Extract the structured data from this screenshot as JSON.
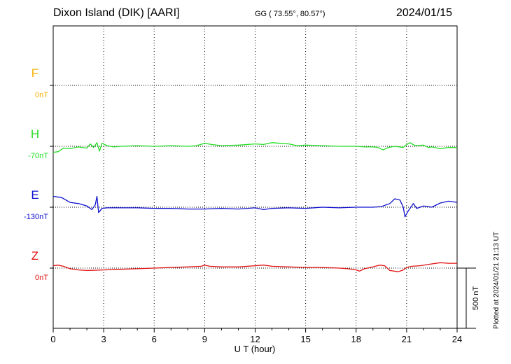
{
  "header": {
    "title": "Dixon Island (DIK)  [AARI]",
    "coords": "GG ( 73.55°,  80.57°)",
    "date": "2024/01/15",
    "plotted": "Plotted at 2024/01/21 21:13 UT"
  },
  "chart_data": {
    "type": "line",
    "title": "Dixon Island (DIK)  [AARI]",
    "xlabel": "U T (hour)",
    "ylabel": "",
    "xlim": [
      0,
      24
    ],
    "x_ticks": [
      "0",
      "3",
      "6",
      "9",
      "12",
      "15",
      "18",
      "21",
      "24"
    ],
    "grid": true,
    "scale_bar_label": "500 nT",
    "scale_bar_nT": 500,
    "series": [
      {
        "name": "F",
        "baseline_label": "0nT",
        "color": "#f5b000",
        "points": []
      },
      {
        "name": "H",
        "baseline_label": "-70nT",
        "color": "#22dd22",
        "points": [
          [
            0,
            -50
          ],
          [
            0.3,
            -45
          ],
          [
            0.6,
            -15
          ],
          [
            1.0,
            -20
          ],
          [
            1.5,
            -5
          ],
          [
            2.0,
            -15
          ],
          [
            2.2,
            20
          ],
          [
            2.4,
            -10
          ],
          [
            2.6,
            30
          ],
          [
            2.75,
            -40
          ],
          [
            2.9,
            25
          ],
          [
            3.2,
            5
          ],
          [
            3.6,
            -5
          ],
          [
            4.0,
            0
          ],
          [
            5.0,
            5
          ],
          [
            6.0,
            0
          ],
          [
            7.0,
            5
          ],
          [
            8.0,
            0
          ],
          [
            8.5,
            5
          ],
          [
            9.0,
            25
          ],
          [
            9.4,
            15
          ],
          [
            10,
            5
          ],
          [
            11,
            10
          ],
          [
            12,
            20
          ],
          [
            12.5,
            15
          ],
          [
            13,
            30
          ],
          [
            13.5,
            25
          ],
          [
            14,
            20
          ],
          [
            14.5,
            5
          ],
          [
            15,
            10
          ],
          [
            16,
            5
          ],
          [
            17,
            0
          ],
          [
            18,
            0
          ],
          [
            18.5,
            -5
          ],
          [
            19,
            -5
          ],
          [
            19.3,
            -10
          ],
          [
            19.6,
            -30
          ],
          [
            19.9,
            -10
          ],
          [
            20.3,
            0
          ],
          [
            20.8,
            -10
          ],
          [
            21,
            15
          ],
          [
            21.2,
            30
          ],
          [
            21.5,
            5
          ],
          [
            22,
            10
          ],
          [
            22.3,
            -10
          ],
          [
            22.5,
            -5
          ],
          [
            23,
            -20
          ],
          [
            23.5,
            -10
          ],
          [
            24,
            -10
          ]
        ]
      },
      {
        "name": "E",
        "baseline_label": "-130nT",
        "color": "#1010d0",
        "points": [
          [
            0,
            90
          ],
          [
            0.5,
            80
          ],
          [
            1.0,
            40
          ],
          [
            1.5,
            30
          ],
          [
            2.0,
            10
          ],
          [
            2.3,
            -20
          ],
          [
            2.5,
            20
          ],
          [
            2.6,
            90
          ],
          [
            2.7,
            -45
          ],
          [
            2.9,
            -10
          ],
          [
            3.2,
            -5
          ],
          [
            4,
            -5
          ],
          [
            5,
            -5
          ],
          [
            6,
            -10
          ],
          [
            7,
            -10
          ],
          [
            8,
            -15
          ],
          [
            9,
            -15
          ],
          [
            10,
            -10
          ],
          [
            11,
            -15
          ],
          [
            12,
            -5
          ],
          [
            12.5,
            -20
          ],
          [
            13,
            -10
          ],
          [
            14,
            -5
          ],
          [
            15,
            -10
          ],
          [
            16,
            0
          ],
          [
            17,
            -5
          ],
          [
            18,
            0
          ],
          [
            19,
            0
          ],
          [
            19.5,
            5
          ],
          [
            20,
            30
          ],
          [
            20.3,
            70
          ],
          [
            20.6,
            60
          ],
          [
            20.8,
            0
          ],
          [
            20.9,
            -80
          ],
          [
            21.1,
            -30
          ],
          [
            21.4,
            30
          ],
          [
            21.6,
            -10
          ],
          [
            22,
            10
          ],
          [
            22.5,
            0
          ],
          [
            23,
            35
          ],
          [
            23.5,
            50
          ],
          [
            24,
            40
          ]
        ]
      },
      {
        "name": "Z",
        "baseline_label": "0nT",
        "color": "#e01010",
        "points": [
          [
            0,
            20
          ],
          [
            0.3,
            25
          ],
          [
            0.6,
            15
          ],
          [
            1.0,
            -5
          ],
          [
            1.5,
            -15
          ],
          [
            2.0,
            -20
          ],
          [
            3,
            -15
          ],
          [
            4,
            -10
          ],
          [
            5,
            -5
          ],
          [
            6,
            0
          ],
          [
            7,
            5
          ],
          [
            8,
            10
          ],
          [
            8.8,
            15
          ],
          [
            9,
            25
          ],
          [
            9.3,
            15
          ],
          [
            10,
            10
          ],
          [
            11,
            10
          ],
          [
            12,
            20
          ],
          [
            12.5,
            25
          ],
          [
            13,
            15
          ],
          [
            14,
            10
          ],
          [
            15,
            5
          ],
          [
            16,
            5
          ],
          [
            17,
            0
          ],
          [
            17.5,
            -5
          ],
          [
            18,
            -15
          ],
          [
            18.2,
            -25
          ],
          [
            18.5,
            -5
          ],
          [
            19,
            10
          ],
          [
            19.4,
            25
          ],
          [
            19.7,
            20
          ],
          [
            20,
            -20
          ],
          [
            20.5,
            -30
          ],
          [
            20.8,
            -15
          ],
          [
            21,
            5
          ],
          [
            21.3,
            15
          ],
          [
            21.8,
            20
          ],
          [
            22.5,
            35
          ],
          [
            23,
            45
          ],
          [
            23.5,
            40
          ],
          [
            24,
            40
          ]
        ]
      }
    ]
  }
}
